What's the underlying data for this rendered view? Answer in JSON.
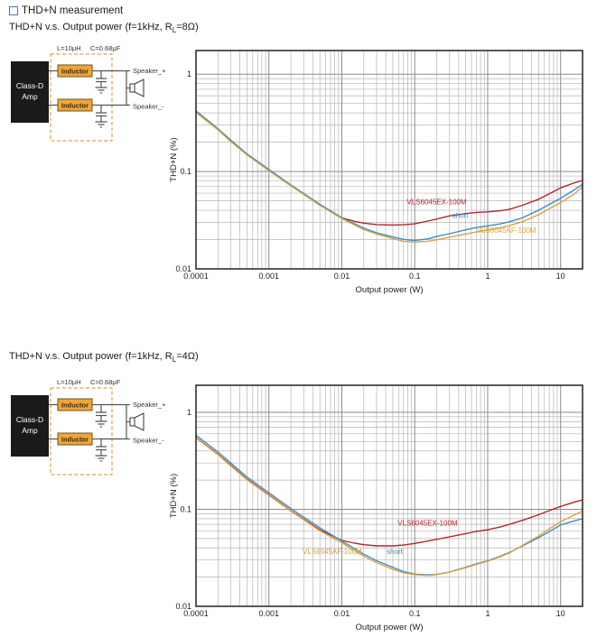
{
  "header": {
    "title": "THD+N measurement",
    "bullet_color": "#4a74b5"
  },
  "sections": [
    {
      "subtitle_pre": "THD+N v.s. Output power (f=1kHz, R",
      "subtitle_sub": "L",
      "subtitle_post": "=8Ω)"
    },
    {
      "subtitle_pre": "THD+N v.s. Output power (f=1kHz, R",
      "subtitle_sub": "L",
      "subtitle_post": "=4Ω)"
    }
  ],
  "circuit": {
    "inductance_label": "L=10μH",
    "capacitance_label": "C=0.68μF",
    "amp_line1": "Class-D",
    "amp_line2": "Amp",
    "inductor_label": "Inductor",
    "speaker_plus": "Speaker_+",
    "speaker_minus": "Speaker_-"
  },
  "chart_data": [
    {
      "type": "line",
      "title": "THD+N v.s. Output power (f=1kHz, RL=8Ω)",
      "grid": true,
      "legend_position": "inline-labels",
      "x_axis": {
        "label": "Output power (W)",
        "scale": "log",
        "min": 0.0001,
        "max": 20,
        "ticks": [
          {
            "v": 0.0001,
            "label": "0.0001"
          },
          {
            "v": 0.001,
            "label": "0.001"
          },
          {
            "v": 0.01,
            "label": "0.01"
          },
          {
            "v": 0.1,
            "label": "0.1"
          },
          {
            "v": 1,
            "label": "1"
          },
          {
            "v": 10,
            "label": "10"
          }
        ]
      },
      "y_axis": {
        "label": "THD+N (%)",
        "scale": "log",
        "min": 0.01,
        "max": 1.75,
        "ticks": [
          {
            "v": 1,
            "label": "1"
          },
          {
            "v": 0.1,
            "label": "0.1"
          },
          {
            "v": 0.01,
            "label": "0.01"
          }
        ]
      },
      "series": [
        {
          "name": "VLS6045EX-100M",
          "color": "#b5242c",
          "label_at": {
            "x": 0.2,
            "y": 0.046
          },
          "points": [
            [
              0.0001,
              0.41
            ],
            [
              0.0002,
              0.27
            ],
            [
              0.0003,
              0.205
            ],
            [
              0.0005,
              0.15
            ],
            [
              0.001,
              0.103
            ],
            [
              0.002,
              0.072
            ],
            [
              0.003,
              0.059
            ],
            [
              0.005,
              0.0455
            ],
            [
              0.01,
              0.0335
            ],
            [
              0.015,
              0.0308
            ],
            [
              0.02,
              0.0295
            ],
            [
              0.03,
              0.0285
            ],
            [
              0.05,
              0.0282
            ],
            [
              0.07,
              0.0284
            ],
            [
              0.1,
              0.029
            ],
            [
              0.15,
              0.031
            ],
            [
              0.2,
              0.0325
            ],
            [
              0.3,
              0.035
            ],
            [
              0.5,
              0.037
            ],
            [
              0.7,
              0.038
            ],
            [
              1,
              0.0385
            ],
            [
              1.5,
              0.0395
            ],
            [
              2,
              0.041
            ],
            [
              3,
              0.045
            ],
            [
              5,
              0.052
            ],
            [
              7,
              0.059
            ],
            [
              10,
              0.068
            ],
            [
              15,
              0.076
            ],
            [
              20,
              0.081
            ]
          ]
        },
        {
          "name": "short",
          "color": "#3b8fc0",
          "label_at": {
            "x": 0.42,
            "y": 0.0335
          },
          "points": [
            [
              0.0001,
              0.42
            ],
            [
              0.0002,
              0.275
            ],
            [
              0.0003,
              0.21
            ],
            [
              0.0005,
              0.152
            ],
            [
              0.001,
              0.105
            ],
            [
              0.002,
              0.073
            ],
            [
              0.003,
              0.0595
            ],
            [
              0.005,
              0.046
            ],
            [
              0.01,
              0.0335
            ],
            [
              0.02,
              0.0262
            ],
            [
              0.03,
              0.0235
            ],
            [
              0.05,
              0.0213
            ],
            [
              0.07,
              0.0201
            ],
            [
              0.1,
              0.0196
            ],
            [
              0.15,
              0.0203
            ],
            [
              0.2,
              0.0215
            ],
            [
              0.3,
              0.023
            ],
            [
              0.5,
              0.0252
            ],
            [
              0.7,
              0.0266
            ],
            [
              1,
              0.0277
            ],
            [
              1.5,
              0.029
            ],
            [
              2,
              0.0305
            ],
            [
              3,
              0.0335
            ],
            [
              5,
              0.04
            ],
            [
              7,
              0.046
            ],
            [
              10,
              0.053
            ],
            [
              15,
              0.064
            ],
            [
              20,
              0.074
            ]
          ]
        },
        {
          "name": "VLS6045AF-100M",
          "color": "#dca33e",
          "label_at": {
            "x": 1.8,
            "y": 0.0235
          },
          "points": [
            [
              0.0001,
              0.405
            ],
            [
              0.0002,
              0.268
            ],
            [
              0.0003,
              0.203
            ],
            [
              0.0005,
              0.148
            ],
            [
              0.001,
              0.102
            ],
            [
              0.002,
              0.0712
            ],
            [
              0.003,
              0.058
            ],
            [
              0.005,
              0.0448
            ],
            [
              0.01,
              0.0328
            ],
            [
              0.02,
              0.0253
            ],
            [
              0.03,
              0.0228
            ],
            [
              0.05,
              0.0205
            ],
            [
              0.07,
              0.0192
            ],
            [
              0.1,
              0.0188
            ],
            [
              0.15,
              0.0192
            ],
            [
              0.2,
              0.0199
            ],
            [
              0.3,
              0.0212
            ],
            [
              0.5,
              0.0228
            ],
            [
              0.7,
              0.024
            ],
            [
              1,
              0.025
            ],
            [
              1.5,
              0.0265
            ],
            [
              2,
              0.0278
            ],
            [
              3,
              0.0305
            ],
            [
              5,
              0.036
            ],
            [
              7,
              0.0415
            ],
            [
              10,
              0.048
            ],
            [
              15,
              0.058
            ],
            [
              20,
              0.0695
            ]
          ]
        }
      ]
    },
    {
      "type": "line",
      "title": "THD+N v.s. Output power (f=1kHz, RL=4Ω)",
      "grid": true,
      "legend_position": "inline-labels",
      "x_axis": {
        "label": "Output power (W)",
        "scale": "log",
        "min": 0.0001,
        "max": 20,
        "ticks": [
          {
            "v": 0.0001,
            "label": "0.0001"
          },
          {
            "v": 0.001,
            "label": "0.001"
          },
          {
            "v": 0.01,
            "label": "0.01"
          },
          {
            "v": 0.1,
            "label": "0.1"
          },
          {
            "v": 1,
            "label": "1"
          },
          {
            "v": 10,
            "label": "10"
          }
        ]
      },
      "y_axis": {
        "label": "THD+N (%)",
        "scale": "log",
        "min": 0.01,
        "max": 1.9,
        "ticks": [
          {
            "v": 1,
            "label": "1"
          },
          {
            "v": 0.1,
            "label": "0.1"
          },
          {
            "v": 0.01,
            "label": "0.01"
          }
        ]
      },
      "series": [
        {
          "name": "VLS6045EX-100M",
          "color": "#b5242c",
          "label_at": {
            "x": 0.15,
            "y": 0.068
          },
          "points": [
            [
              0.0001,
              0.55
            ],
            [
              0.0002,
              0.37
            ],
            [
              0.0003,
              0.285
            ],
            [
              0.0005,
              0.205
            ],
            [
              0.001,
              0.141
            ],
            [
              0.002,
              0.097
            ],
            [
              0.003,
              0.079
            ],
            [
              0.005,
              0.0615
            ],
            [
              0.01,
              0.0478
            ],
            [
              0.015,
              0.0448
            ],
            [
              0.02,
              0.0432
            ],
            [
              0.03,
              0.042
            ],
            [
              0.05,
              0.042
            ],
            [
              0.07,
              0.0428
            ],
            [
              0.1,
              0.0445
            ],
            [
              0.15,
              0.047
            ],
            [
              0.2,
              0.049
            ],
            [
              0.3,
              0.052
            ],
            [
              0.5,
              0.0562
            ],
            [
              0.7,
              0.0592
            ],
            [
              1,
              0.0615
            ],
            [
              1.5,
              0.066
            ],
            [
              2,
              0.07
            ],
            [
              3,
              0.077
            ],
            [
              5,
              0.088
            ],
            [
              7,
              0.097
            ],
            [
              10,
              0.107
            ],
            [
              15,
              0.118
            ],
            [
              20,
              0.125
            ]
          ]
        },
        {
          "name": "short",
          "color": "#3b8fc0",
          "label_at": {
            "x": 0.053,
            "y": 0.0345
          },
          "points": [
            [
              0.0001,
              0.58
            ],
            [
              0.0002,
              0.39
            ],
            [
              0.0003,
              0.3
            ],
            [
              0.0005,
              0.215
            ],
            [
              0.001,
              0.148
            ],
            [
              0.002,
              0.102
            ],
            [
              0.003,
              0.083
            ],
            [
              0.005,
              0.0645
            ],
            [
              0.01,
              0.047
            ],
            [
              0.02,
              0.0345
            ],
            [
              0.03,
              0.0295
            ],
            [
              0.05,
              0.0252
            ],
            [
              0.07,
              0.0228
            ],
            [
              0.1,
              0.0215
            ],
            [
              0.15,
              0.0211
            ],
            [
              0.2,
              0.0213
            ],
            [
              0.3,
              0.0226
            ],
            [
              0.5,
              0.0253
            ],
            [
              0.7,
              0.0274
            ],
            [
              1,
              0.0295
            ],
            [
              1.5,
              0.033
            ],
            [
              2,
              0.036
            ],
            [
              3,
              0.042
            ],
            [
              5,
              0.051
            ],
            [
              7,
              0.059
            ],
            [
              10,
              0.069
            ],
            [
              15,
              0.0755
            ],
            [
              20,
              0.08
            ]
          ]
        },
        {
          "name": "VLS6045AF-100M",
          "color": "#dca33e",
          "label_at": {
            "x": 0.0074,
            "y": 0.0345
          },
          "points": [
            [
              0.0001,
              0.545
            ],
            [
              0.0002,
              0.365
            ],
            [
              0.0003,
              0.28
            ],
            [
              0.0005,
              0.202
            ],
            [
              0.001,
              0.139
            ],
            [
              0.002,
              0.096
            ],
            [
              0.003,
              0.078
            ],
            [
              0.005,
              0.06
            ],
            [
              0.01,
              0.0452
            ],
            [
              0.02,
              0.0328
            ],
            [
              0.03,
              0.0282
            ],
            [
              0.05,
              0.024
            ],
            [
              0.07,
              0.0222
            ],
            [
              0.1,
              0.0212
            ],
            [
              0.15,
              0.0208
            ],
            [
              0.2,
              0.0212
            ],
            [
              0.3,
              0.0225
            ],
            [
              0.5,
              0.025
            ],
            [
              0.7,
              0.027
            ],
            [
              1,
              0.0292
            ],
            [
              1.5,
              0.0325
            ],
            [
              2,
              0.0355
            ],
            [
              3,
              0.0425
            ],
            [
              5,
              0.053
            ],
            [
              7,
              0.063
            ],
            [
              10,
              0.0745
            ],
            [
              15,
              0.0865
            ],
            [
              20,
              0.096
            ]
          ]
        }
      ]
    }
  ]
}
